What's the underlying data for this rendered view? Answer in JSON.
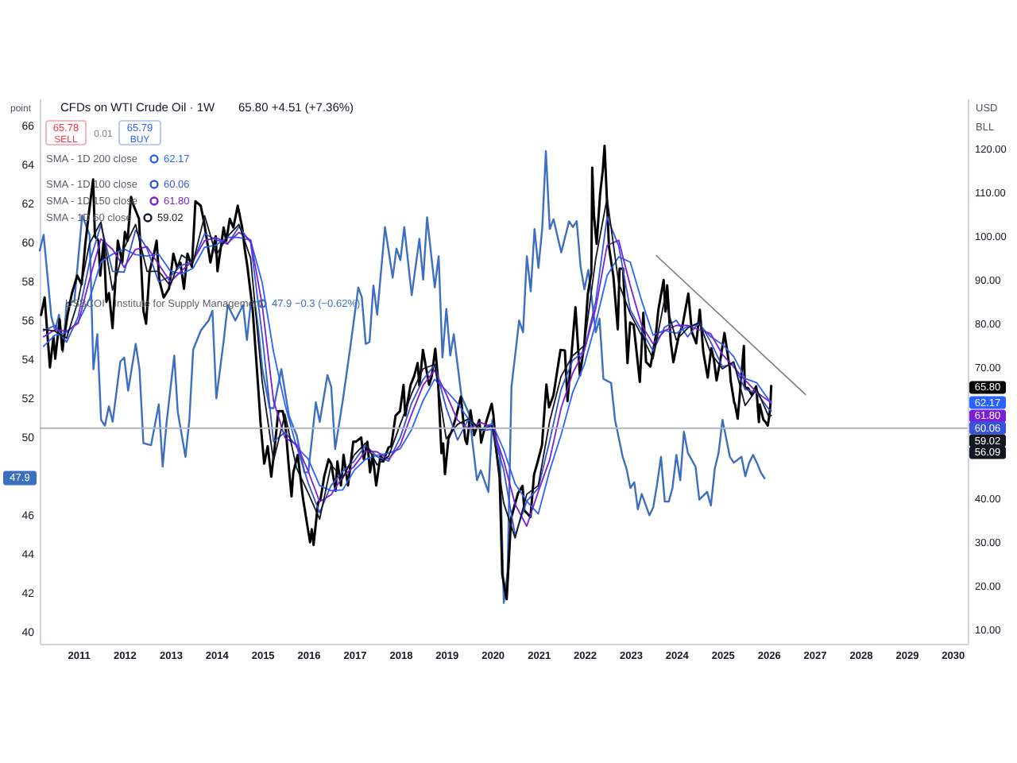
{
  "chart_data": {
    "type": "line",
    "title": "CFDs on WTI Crude Oil · 1W",
    "ylabel": "point",
    "y2label": "USD",
    "annotations": [
      "65.80 +4.51 (+7.36%)",
      "65.78",
      "SELL",
      "0.01",
      "65.79",
      "BUY",
      "62.17",
      "60.06",
      "61.80",
      "59.02",
      "47.9 −0.3 (−0.62%)",
      "BLL",
      "65.80",
      "62.17",
      "61.80",
      "60.06",
      "59.02",
      "47.9"
    ],
    "legend": "top left",
    "xlim": [
      "2010-03-01",
      "2030-05-02"
    ],
    "xticks": [
      "2011",
      "2012",
      "2013",
      "2014",
      "2015",
      "2016",
      "2017",
      "2018",
      "2019",
      "2020",
      "2021",
      "2022",
      "2023",
      "2024",
      "2025",
      "2026",
      "2027",
      "2028",
      "2029",
      "2030"
    ],
    "ylim": [
      39.4,
      67.4
    ],
    "yticks": [
      40,
      42,
      44,
      46,
      50,
      52,
      54,
      56,
      58,
      60,
      62,
      64,
      66
    ],
    "y2lim": [
      6.8,
      131.5
    ],
    "y2ticks": [
      {
        "value": 10,
        "label": "10.00"
      },
      {
        "value": 20,
        "label": "20.00"
      },
      {
        "value": 30,
        "label": "30.00"
      },
      {
        "value": 40,
        "label": "40.00"
      },
      {
        "value": 70,
        "label": "70.00"
      },
      {
        "value": 80,
        "label": "80.00"
      },
      {
        "value": 90,
        "label": "90.00"
      },
      {
        "value": 100,
        "label": "100.00"
      },
      {
        "value": 110,
        "label": "110.00"
      },
      {
        "value": 120,
        "label": "120.00"
      }
    ],
    "ref_lines": [
      {
        "axis": "y2",
        "value": 56.09,
        "label": "56.09",
        "color": "#b2b5be"
      }
    ],
    "x": [
      "2010-03-31",
      "2010-06-30",
      "2010-09-30",
      "2010-12-31",
      "2011-03-31",
      "2011-06-30",
      "2011-09-30",
      "2011-12-31",
      "2012-03-31",
      "2012-06-30",
      "2012-09-30",
      "2012-12-31",
      "2013-03-31",
      "2013-06-30",
      "2013-09-30",
      "2013-12-31",
      "2014-03-31",
      "2014-06-30",
      "2014-09-30",
      "2014-12-31",
      "2015-03-31",
      "2015-06-30",
      "2015-09-30",
      "2015-12-31",
      "2016-03-31",
      "2016-06-30",
      "2016-09-30",
      "2016-12-31",
      "2017-03-31",
      "2017-06-30",
      "2017-09-30",
      "2017-12-31",
      "2018-03-31",
      "2018-06-30",
      "2018-09-30",
      "2018-12-31",
      "2019-03-31",
      "2019-06-30",
      "2019-09-30",
      "2019-12-31",
      "2020-03-31",
      "2020-06-30",
      "2020-09-30",
      "2020-12-31",
      "2021-03-31",
      "2021-06-30",
      "2021-09-30",
      "2021-12-31",
      "2022-03-31",
      "2022-06-30",
      "2022-09-30",
      "2022-12-31",
      "2023-03-31",
      "2023-06-30",
      "2023-09-30",
      "2023-12-31",
      "2024-03-31",
      "2024-06-30",
      "2024-09-30",
      "2024-12-31",
      "2025-03-31",
      "2025-06-30",
      "2025-09-30",
      "2025-12-31",
      "2026-01-23"
    ],
    "series": [
      {
        "color": "#000000",
        "axis": "y2",
        "x": [
          "2010-03-12",
          "2010-04-09",
          "2010-05-21",
          "2010-06-18",
          "2010-07-02",
          "2010-08-06",
          "2010-08-27",
          "2010-10-08",
          "2010-11-12",
          "2010-12-24",
          "2011-01-28",
          "2011-02-25",
          "2011-03-25",
          "2011-04-29",
          "2011-05-13",
          "2011-06-10",
          "2011-06-24",
          "2011-07-22",
          "2011-08-12",
          "2011-09-02",
          "2011-09-30",
          "2011-11-11",
          "2011-12-16",
          "2012-01-06",
          "2012-01-27",
          "2012-02-24",
          "2012-03-16",
          "2012-04-27",
          "2012-06-01",
          "2012-06-22",
          "2012-07-20",
          "2012-08-24",
          "2012-09-14",
          "2012-10-05",
          "2012-11-09",
          "2012-12-21",
          "2013-01-25",
          "2013-02-22",
          "2013-03-22",
          "2013-04-19",
          "2013-05-17",
          "2013-06-21",
          "2013-07-19",
          "2013-08-30",
          "2013-09-27",
          "2013-11-15",
          "2013-12-27",
          "2014-01-10",
          "2014-02-28",
          "2014-03-21",
          "2014-04-18",
          "2014-05-16",
          "2014-06-20",
          "2014-07-25",
          "2014-08-15",
          "2014-09-05",
          "2014-10-17",
          "2014-11-28",
          "2014-12-19",
          "2015-01-16",
          "2015-02-13",
          "2015-03-13",
          "2015-04-10",
          "2015-05-08",
          "2015-06-12",
          "2015-07-03",
          "2015-07-31",
          "2015-08-21",
          "2015-09-04",
          "2015-10-09",
          "2015-11-20",
          "2015-12-18",
          "2016-01-15",
          "2016-01-29",
          "2016-02-12",
          "2016-03-18",
          "2016-04-08",
          "2016-05-06",
          "2016-06-10",
          "2016-07-01",
          "2016-08-05",
          "2016-08-19",
          "2016-09-16",
          "2016-10-07",
          "2016-11-11",
          "2016-12-23",
          "2017-01-13",
          "2017-02-24",
          "2017-03-17",
          "2017-04-14",
          "2017-05-05",
          "2017-05-26",
          "2017-06-23",
          "2017-07-28",
          "2017-08-18",
          "2017-09-29",
          "2017-10-20",
          "2017-11-24",
          "2017-12-29",
          "2018-01-26",
          "2018-02-09",
          "2018-03-23",
          "2018-04-20",
          "2018-05-18",
          "2018-06-01",
          "2018-06-29",
          "2018-08-17",
          "2018-09-07",
          "2018-10-05",
          "2018-10-26",
          "2018-11-23",
          "2018-12-07",
          "2018-12-21",
          "2019-01-18",
          "2019-02-15",
          "2019-03-22",
          "2019-04-26",
          "2019-05-31",
          "2019-06-14",
          "2019-07-12",
          "2019-08-09",
          "2019-09-20",
          "2019-10-04",
          "2019-11-15",
          "2019-12-27",
          "2020-01-10",
          "2020-01-31",
          "2020-02-28",
          "2020-03-20",
          "2020-04-24",
          "2020-05-29",
          "2020-06-26",
          "2020-07-24",
          "2020-08-28",
          "2020-09-11",
          "2020-10-30",
          "2020-11-27",
          "2020-12-24",
          "2021-01-29",
          "2021-03-05",
          "2021-03-26",
          "2021-04-30",
          "2021-06-25",
          "2021-07-30",
          "2021-08-20",
          "2021-10-22",
          "2021-11-26",
          "2021-12-31",
          "2022-01-28",
          "2022-02-25",
          "2022-03-04",
          "2022-03-18",
          "2022-04-08",
          "2022-05-06",
          "2022-05-27",
          "2022-06-10",
          "2022-07-15",
          "2022-08-19",
          "2022-09-23",
          "2022-10-07",
          "2022-11-04",
          "2022-12-09",
          "2022-12-30",
          "2023-01-27",
          "2023-03-17",
          "2023-04-14",
          "2023-05-05",
          "2023-06-09",
          "2023-07-21",
          "2023-08-11",
          "2023-09-22",
          "2023-10-06",
          "2023-10-20",
          "2023-11-17",
          "2023-12-08",
          "2024-01-26",
          "2024-02-16",
          "2024-04-05",
          "2024-05-03",
          "2024-06-07",
          "2024-07-05",
          "2024-08-02",
          "2024-09-06",
          "2024-10-04",
          "2024-10-25",
          "2024-11-15",
          "2024-12-13",
          "2025-01-10",
          "2025-01-17",
          "2025-02-28",
          "2025-03-07",
          "2025-04-04",
          "2025-04-11",
          "2025-05-02",
          "2025-06-20",
          "2025-06-27",
          "2025-07-25",
          "2025-08-22",
          "2025-09-26",
          "2025-10-17",
          "2025-10-24",
          "2025-11-21",
          "2025-12-12",
          "2025-12-26",
          "2026-01-09",
          "2026-01-16",
          "2026-01-23"
        ],
        "values": [
          82,
          86,
          70,
          77,
          72,
          81,
          74,
          82,
          87,
          91,
          89,
          98,
          105,
          113,
          100,
          99,
          91,
          99,
          85,
          87,
          79,
          99,
          94,
          101,
          99,
          109,
          107,
          104,
          83,
          80,
          92,
          96,
          99,
          90,
          86,
          88,
          96,
          93,
          94,
          88,
          96,
          93,
          108,
          107,
          103,
          94,
          100,
          92,
          102,
          99,
          104,
          102,
          107,
          102,
          97,
          93,
          83,
          66,
          57,
          48,
          52,
          45,
          52,
          60,
          60,
          57,
          47,
          40.5,
          46,
          50,
          40,
          35,
          30,
          33,
          29.4,
          39,
          40,
          45,
          49,
          48,
          41.8,
          48.5,
          43,
          50,
          43,
          53,
          53,
          54,
          49,
          53,
          46,
          50,
          43,
          50,
          48.5,
          51.7,
          52,
          59,
          60,
          66,
          59,
          66,
          68,
          71,
          65.8,
          74,
          66,
          68,
          74.3,
          67.6,
          50.4,
          52.6,
          45.6,
          53.8,
          55.6,
          59,
          63.3,
          53.5,
          52.5,
          60.2,
          54.5,
          58,
          52.8,
          57.7,
          61.7,
          59,
          51.6,
          44.8,
          22.6,
          17,
          35.5,
          38.5,
          41.3,
          42.9,
          37.3,
          35.8,
          45.5,
          48.2,
          52.2,
          66.1,
          60.9,
          63.6,
          74,
          73.9,
          62.3,
          83.8,
          68.2,
          75.2,
          86.8,
          91.6,
          115.7,
          104.7,
          98.3,
          109.8,
          115.1,
          120.7,
          97.6,
          90.8,
          78.7,
          92.6,
          92.6,
          71,
          80.3,
          79.7,
          66.7,
          82.5,
          71.3,
          70.2,
          77.1,
          83.2,
          90,
          82.8,
          88.8,
          75.9,
          71.2,
          78,
          79.2,
          86.9,
          78.1,
          75.5,
          83.2,
          73.5,
          67.7,
          74.4,
          71.8,
          67,
          71.3,
          76.6,
          77.9,
          69.8,
          67,
          62,
          61.5,
          58.3,
          74.9,
          65.5,
          65.2,
          63.7,
          65.7,
          57.5,
          61.5,
          58.1,
          57.4,
          56.7,
          59.1,
          61.3,
          65.8
        ]
      },
      {
        "name": "SMA - 1D 200 close",
        "color": "#2962ff",
        "axis": "y2",
        "values": [
          74.8,
          77.4,
          78,
          80.4,
          85.6,
          94.1,
          95.9,
          97.1,
          95.8,
          95.5,
          95.9,
          92.1,
          91.4,
          92.7,
          97.5,
          98,
          99.8,
          99.7,
          99.1,
          89.4,
          73.6,
          61.5,
          51.8,
          49.1,
          43,
          41.8,
          42,
          46.5,
          49,
          49.9,
          50.4,
          51.4,
          55.8,
          62.4,
          67.3,
          64.7,
          61.8,
          58,
          55.8,
          57.2,
          51.2,
          43.4,
          39.4,
          36.5,
          46.4,
          54.6,
          64.3,
          70.6,
          80.1,
          91,
          95.3,
          94.1,
          85.3,
          77.4,
          78.5,
          77.8,
          79.4,
          79.8,
          77,
          75.3,
          72.5,
          67.5,
          66.5,
          62.7,
          62.17
        ]
      },
      {
        "name": "SMA - 1D 100 close",
        "color": "#3554d9",
        "axis": "y2",
        "values": [
          78.4,
          79.6,
          75.8,
          81.6,
          94,
          102.6,
          92,
          91.8,
          101.4,
          97.2,
          89.6,
          90.8,
          93.4,
          94.2,
          100.6,
          99.2,
          98.2,
          102.2,
          98.6,
          77.4,
          53,
          55.2,
          52,
          43.6,
          36.8,
          43,
          46.2,
          48.6,
          52.2,
          49.6,
          48.6,
          54,
          61.8,
          67.2,
          70.6,
          60.8,
          53.4,
          58.4,
          55.6,
          55.8,
          46.6,
          31.6,
          39.4,
          42.4,
          53.2,
          65,
          71.6,
          73.8,
          85,
          104.4,
          97.8,
          83.2,
          78.4,
          73.8,
          79.2,
          80.8,
          77,
          80.4,
          75.8,
          70.2,
          70.8,
          65,
          64.2,
          60.6,
          60.06
        ]
      },
      {
        "name": "SMA - 1D 150 close",
        "color": "#7b1fd6",
        "axis": "y2",
        "values": [
          77,
          78.6,
          78.3,
          80.1,
          90.1,
          99.4,
          97,
          92.9,
          97,
          97.6,
          93.6,
          89.6,
          92.1,
          94.4,
          99,
          99.7,
          98.4,
          100.9,
          99.1,
          84.3,
          62.4,
          53.9,
          52.4,
          46.3,
          39.3,
          40.9,
          45,
          47.4,
          50.9,
          50.7,
          49,
          52.3,
          59.3,
          65.9,
          69.4,
          63.9,
          57.9,
          55.9,
          57.4,
          56.4,
          48.7,
          38.7,
          33.7,
          41.6,
          48.9,
          60.7,
          68.7,
          73.9,
          83.4,
          97.9,
          99.1,
          88.7,
          79.7,
          75.4,
          78.4,
          79.6,
          79.6,
          78.6,
          77.7,
          73,
          70.1,
          67.1,
          64.3,
          62.4,
          61.8
        ]
      },
      {
        "name": "SMA - 1D 60 close",
        "color": "#131722",
        "axis": "y2",
        "values": [
          78.7,
          78.3,
          76.7,
          85.3,
          98.3,
          103.3,
          87.7,
          97.3,
          102.7,
          92,
          92,
          88.7,
          95.7,
          94,
          104.7,
          95.7,
          100,
          102.7,
          95,
          66.7,
          48.7,
          59.3,
          47,
          41.3,
          35.3,
          47.7,
          44.7,
          50,
          52.7,
          47.7,
          49.7,
          57,
          64,
          69.7,
          70.7,
          53.7,
          57,
          58.3,
          55.7,
          56.7,
          39,
          31,
          41,
          43,
          57.7,
          68,
          72.7,
          75,
          94.7,
          108.7,
          89.3,
          82.3,
          77.3,
          72,
          85.7,
          76.3,
          79,
          80.3,
          73.3,
          69.7,
          71.3,
          61.3,
          65,
          59,
          59.02
        ]
      },
      {
        "name": "USBCOI · Institute for Supply Management",
        "color": "#3d6fc1",
        "x": [
          "2010-03",
          "2010-04",
          "2010-06",
          "2010-07",
          "2010-08",
          "2010-09",
          "2010-10",
          "2010-12",
          "2011-02",
          "2011-04",
          "2011-05",
          "2011-06",
          "2011-07",
          "2011-08",
          "2011-09",
          "2011-10",
          "2011-12",
          "2012-01",
          "2012-02",
          "2012-04",
          "2012-05",
          "2012-06",
          "2012-08",
          "2012-10",
          "2012-11",
          "2012-12",
          "2013-02",
          "2013-03",
          "2013-05",
          "2013-06",
          "2013-07",
          "2013-09",
          "2013-11",
          "2013-12",
          "2014-01",
          "2014-03",
          "2014-04",
          "2014-06",
          "2014-08",
          "2014-09",
          "2014-10",
          "2014-11",
          "2014-12",
          "2015-01",
          "2015-03",
          "2015-04",
          "2015-06",
          "2015-08",
          "2015-10",
          "2015-12",
          "2016-01",
          "2016-03",
          "2016-04",
          "2016-06",
          "2016-07",
          "2016-08",
          "2016-10",
          "2016-12",
          "2017-02",
          "2017-03",
          "2017-04",
          "2017-05",
          "2017-06",
          "2017-07",
          "2017-09",
          "2017-11",
          "2017-12",
          "2018-01",
          "2018-02",
          "2018-04",
          "2018-06",
          "2018-07",
          "2018-08",
          "2018-10",
          "2018-11",
          "2018-12",
          "2019-01",
          "2019-02",
          "2019-03",
          "2019-05",
          "2019-07",
          "2019-09",
          "2019-10",
          "2019-12",
          "2020-01",
          "2020-03",
          "2020-04",
          "2020-05",
          "2020-06",
          "2020-08",
          "2020-09",
          "2020-10",
          "2020-11",
          "2020-12",
          "2021-01",
          "2021-02",
          "2021-03",
          "2021-04",
          "2021-05",
          "2021-07",
          "2021-09",
          "2021-10",
          "2021-11",
          "2021-12",
          "2022-01",
          "2022-02",
          "2022-03",
          "2022-04",
          "2022-05",
          "2022-06",
          "2022-08",
          "2022-09",
          "2022-11",
          "2022-12",
          "2023-01",
          "2023-02",
          "2023-03",
          "2023-04",
          "2023-06",
          "2023-07",
          "2023-08",
          "2023-09",
          "2023-10",
          "2023-11",
          "2023-12",
          "2024-01",
          "2024-02",
          "2024-03",
          "2024-04",
          "2024-06",
          "2024-07",
          "2024-09",
          "2024-10",
          "2024-11",
          "2024-12",
          "2025-01",
          "2025-03",
          "2025-04",
          "2025-06",
          "2025-07",
          "2025-08",
          "2025-09",
          "2025-10",
          "2025-11",
          "2025-12"
        ],
        "values": [
          59.6,
          60.4,
          56.2,
          55.5,
          56.3,
          54.4,
          56.9,
          57,
          61.4,
          60.4,
          53.5,
          55.3,
          50.9,
          50.6,
          51.6,
          50.8,
          53.9,
          54.1,
          52.4,
          54.8,
          53.5,
          49.7,
          49.6,
          51.7,
          48.5,
          50.7,
          54.2,
          51.3,
          49,
          50.9,
          54.5,
          55.5,
          56,
          56.5,
          52,
          55,
          56.8,
          56,
          56.8,
          55,
          56.9,
          57,
          55.5,
          53.5,
          51.5,
          51.5,
          53.5,
          51.1,
          50.1,
          48.2,
          48.2,
          51.8,
          50.8,
          53.2,
          52.6,
          49.4,
          51.9,
          54.7,
          57.7,
          57.2,
          54.8,
          54.9,
          57.8,
          56.3,
          60.8,
          58.2,
          59.7,
          59.1,
          60.8,
          57.3,
          60.2,
          58.1,
          61.3,
          57.7,
          59.3,
          54.1,
          56.6,
          54.2,
          55.3,
          52.1,
          51.2,
          47.8,
          48.3,
          47.2,
          50.9,
          49.1,
          41.5,
          43.1,
          52.6,
          56,
          55.4,
          59.3,
          57.5,
          60.7,
          58.7,
          60.8,
          64.7,
          60.7,
          61.2,
          59.5,
          61.1,
          60.8,
          61.1,
          58.8,
          57.6,
          58.6,
          57.1,
          55.4,
          56.1,
          53,
          52.8,
          50.9,
          49,
          48.4,
          47.4,
          47.7,
          46.3,
          47.1,
          46,
          46.4,
          47.6,
          49,
          46.7,
          46.7,
          47.4,
          49.1,
          47.8,
          50.3,
          49.2,
          48.5,
          46.8,
          47.2,
          46.5,
          48.4,
          49.2,
          50.9,
          49,
          48.7,
          49,
          48,
          48.7,
          49.1,
          48.7,
          48.2,
          47.9
        ]
      },
      {
        "type": "line",
        "color": "#787b86",
        "axis": "y2",
        "x": [
          "2023-07-25",
          "2026-10-22"
        ],
        "values": [
          95.6,
          63.8
        ]
      }
    ]
  }
}
